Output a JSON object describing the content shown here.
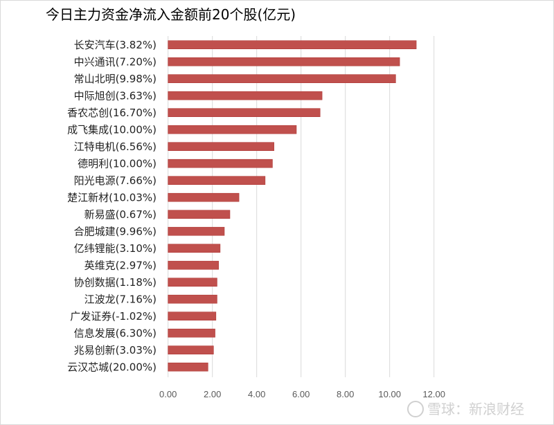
{
  "chart_data": {
    "type": "bar",
    "orientation": "horizontal",
    "title": "今日主力资金净流入金额前20个股(亿元)",
    "categories": [
      "长安汽车(3.82%)",
      "中兴通讯(7.20%)",
      "常山北明(9.98%)",
      "中际旭创(3.63%)",
      "香农芯创(16.70%)",
      "成飞集成(10.00%)",
      "江特电机(6.56%)",
      "德明利(10.00%)",
      "阳光电源(7.66%)",
      "楚江新材(10.03%)",
      "新易盛(0.67%)",
      "合肥城建(9.96%)",
      "亿纬锂能(3.10%)",
      "英维克(2.97%)",
      "协创数据(1.18%)",
      "江波龙(7.16%)",
      "广发证券(-1.02%)",
      "信息发展(6.30%)",
      "兆易创新(3.03%)",
      "云汉芯城(20.00%)"
    ],
    "values": [
      11.2,
      10.45,
      10.27,
      6.95,
      6.86,
      5.79,
      4.78,
      4.71,
      4.38,
      3.2,
      2.79,
      2.54,
      2.35,
      2.28,
      2.21,
      2.21,
      2.16,
      2.12,
      2.05,
      1.8
    ],
    "xticks": [
      "0.00",
      "2.00",
      "4.00",
      "6.00",
      "8.00",
      "10.00",
      "12.00"
    ],
    "xlim": [
      0,
      12
    ],
    "grid": true,
    "bar_color": "#c0504d",
    "xlabel": "",
    "ylabel": ""
  },
  "watermark": "雪球：新浪财经"
}
